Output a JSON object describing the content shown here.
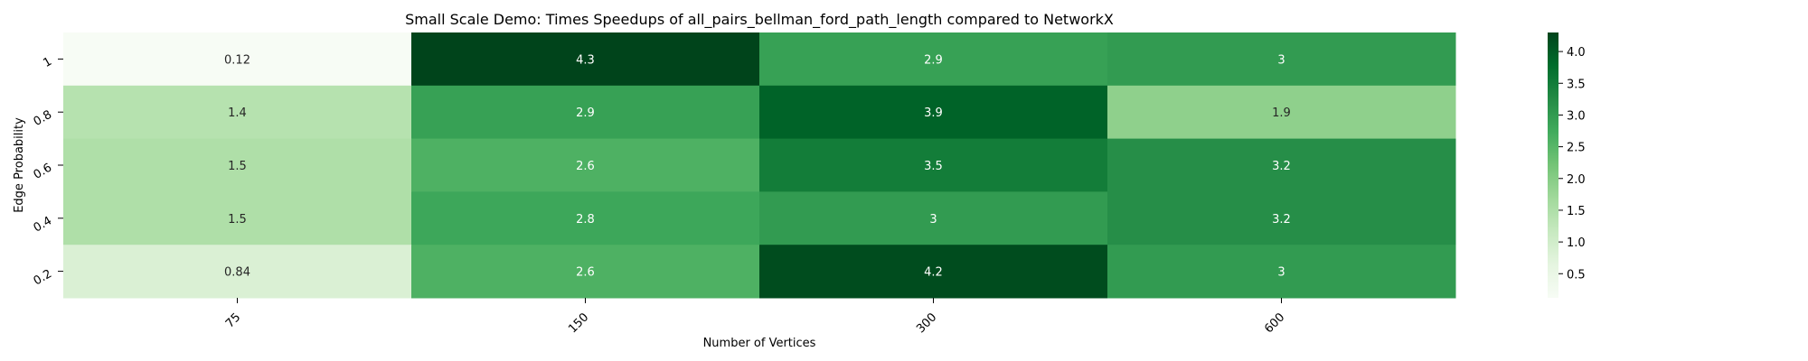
{
  "chart_data": {
    "type": "heatmap",
    "title": "Small Scale Demo: Times Speedups of all_pairs_bellman_ford_path_length compared to NetworkX",
    "xlabel": "Number of Vertices",
    "ylabel": "Edge Probability",
    "x_categories": [
      "75",
      "150",
      "300",
      "600"
    ],
    "y_categories": [
      "1",
      "0.8",
      "0.6",
      "0.4",
      "0.2"
    ],
    "values": [
      [
        0.12,
        4.3,
        2.9,
        3
      ],
      [
        1.4,
        2.9,
        3.9,
        1.9
      ],
      [
        1.5,
        2.6,
        3.5,
        3.2
      ],
      [
        1.5,
        2.8,
        3,
        3.2
      ],
      [
        0.84,
        2.6,
        4.2,
        3
      ]
    ],
    "value_labels": [
      [
        "0.12",
        "4.3",
        "2.9",
        "3"
      ],
      [
        "1.4",
        "2.9",
        "3.9",
        "1.9"
      ],
      [
        "1.5",
        "2.6",
        "3.5",
        "3.2"
      ],
      [
        "1.5",
        "2.8",
        "3",
        "3.2"
      ],
      [
        "0.84",
        "2.6",
        "4.2",
        "3"
      ]
    ],
    "colormap": "Greens",
    "colorbar": {
      "range": [
        0.12,
        4.3
      ],
      "ticks": [
        0.5,
        1.0,
        1.5,
        2.0,
        2.5,
        3.0,
        3.5,
        4.0
      ],
      "tick_labels": [
        "0.5",
        "1.0",
        "1.5",
        "2.0",
        "2.5",
        "3.0",
        "3.5",
        "4.0"
      ]
    }
  }
}
